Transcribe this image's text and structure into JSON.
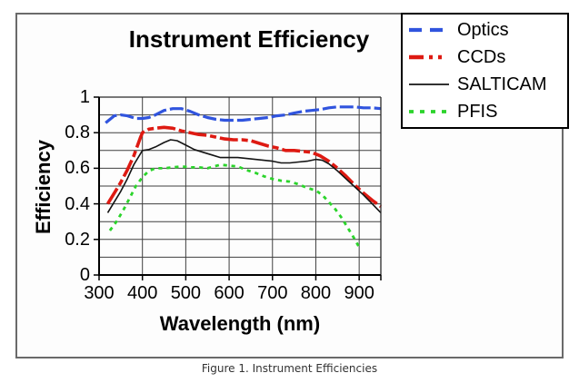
{
  "figure": {
    "caption": "Figure 1. Instrument Efficiencies"
  },
  "frame_color": "#6a6a6a",
  "chart_data": {
    "type": "line",
    "title": "Instrument Efficiency",
    "xlabel": "Wavelength (nm)",
    "ylabel": "Efficiency",
    "xlim": [
      300,
      950
    ],
    "ylim": [
      0,
      1
    ],
    "x_ticks": [
      300,
      400,
      500,
      600,
      700,
      800,
      900
    ],
    "y_ticks": [
      0,
      0.2,
      0.4,
      0.6,
      0.8,
      1
    ],
    "y_tick_labels": [
      "0",
      "0.2",
      "0.4",
      "0.6",
      "0.8",
      "1"
    ],
    "grid": {
      "x_step": 100,
      "y_step": 0.1,
      "color": "#3f3f3f"
    },
    "legend_position": "top-right",
    "series": [
      {
        "name": "Optics",
        "color": "#3054de",
        "width": 3.2,
        "dash": "15 4",
        "legend_dash": "14 9",
        "x": [
          315,
          335,
          350,
          365,
          385,
          400,
          415,
          430,
          450,
          470,
          490,
          510,
          530,
          550,
          570,
          590,
          610,
          630,
          650,
          670,
          690,
          710,
          730,
          750,
          770,
          790,
          810,
          830,
          850,
          870,
          890,
          910,
          930,
          950
        ],
        "y": [
          0.855,
          0.895,
          0.9,
          0.895,
          0.88,
          0.88,
          0.885,
          0.9,
          0.925,
          0.935,
          0.935,
          0.92,
          0.9,
          0.885,
          0.875,
          0.87,
          0.87,
          0.87,
          0.875,
          0.88,
          0.885,
          0.895,
          0.9,
          0.91,
          0.92,
          0.925,
          0.93,
          0.94,
          0.945,
          0.945,
          0.945,
          0.94,
          0.94,
          0.935
        ]
      },
      {
        "name": "CCDs",
        "color": "#de1a12",
        "width": 3.6,
        "dash": "20 4 7 4",
        "legend_dash": "16 6 4 6 4 20",
        "x": [
          320,
          335,
          350,
          365,
          380,
          395,
          400,
          415,
          430,
          450,
          470,
          490,
          510,
          530,
          550,
          570,
          590,
          610,
          630,
          650,
          670,
          690,
          710,
          730,
          750,
          770,
          790,
          810,
          830,
          850,
          870,
          890,
          910,
          930,
          950
        ],
        "y": [
          0.4,
          0.46,
          0.52,
          0.59,
          0.67,
          0.77,
          0.8,
          0.82,
          0.825,
          0.83,
          0.825,
          0.81,
          0.8,
          0.79,
          0.785,
          0.775,
          0.765,
          0.76,
          0.76,
          0.755,
          0.74,
          0.725,
          0.715,
          0.7,
          0.7,
          0.695,
          0.69,
          0.67,
          0.64,
          0.6,
          0.555,
          0.505,
          0.46,
          0.42,
          0.385
        ]
      },
      {
        "name": "SALTICAM",
        "color": "#141414",
        "width": 1.6,
        "dash": null,
        "legend_dash": null,
        "x": [
          320,
          335,
          350,
          365,
          380,
          400,
          415,
          430,
          450,
          465,
          480,
          500,
          520,
          540,
          560,
          580,
          600,
          620,
          640,
          660,
          680,
          700,
          720,
          740,
          760,
          780,
          800,
          815,
          830,
          850,
          870,
          890,
          910,
          930,
          950
        ],
        "y": [
          0.35,
          0.41,
          0.47,
          0.54,
          0.62,
          0.7,
          0.705,
          0.72,
          0.745,
          0.76,
          0.755,
          0.73,
          0.705,
          0.69,
          0.675,
          0.66,
          0.66,
          0.66,
          0.655,
          0.65,
          0.645,
          0.64,
          0.63,
          0.63,
          0.635,
          0.64,
          0.65,
          0.645,
          0.625,
          0.585,
          0.54,
          0.495,
          0.45,
          0.4,
          0.35
        ]
      },
      {
        "name": "PFIS",
        "color": "#2bd42b",
        "width": 2.8,
        "dash": "4.2 4.8",
        "legend_dash": "5 7",
        "x": [
          325,
          340,
          355,
          370,
          385,
          400,
          415,
          430,
          450,
          470,
          490,
          510,
          530,
          550,
          565,
          580,
          600,
          620,
          640,
          660,
          680,
          700,
          720,
          740,
          760,
          780,
          800,
          815,
          830,
          845,
          860,
          875,
          890,
          900
        ],
        "y": [
          0.25,
          0.3,
          0.36,
          0.43,
          0.5,
          0.55,
          0.585,
          0.6,
          0.6,
          0.605,
          0.61,
          0.605,
          0.605,
          0.6,
          0.61,
          0.62,
          0.615,
          0.61,
          0.59,
          0.575,
          0.555,
          0.54,
          0.53,
          0.525,
          0.51,
          0.49,
          0.475,
          0.45,
          0.41,
          0.37,
          0.32,
          0.26,
          0.2,
          0.155
        ]
      }
    ]
  }
}
